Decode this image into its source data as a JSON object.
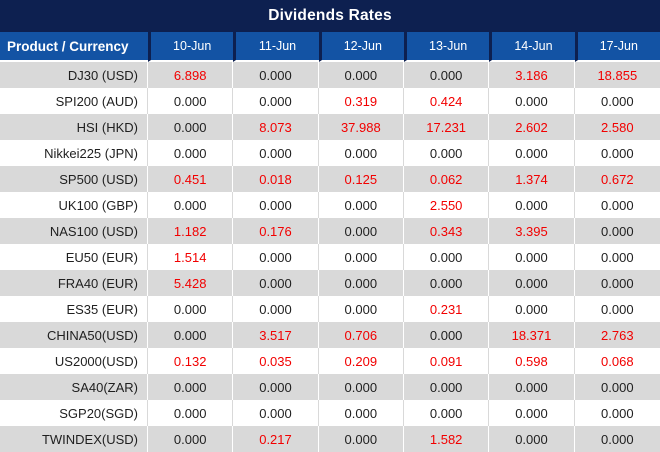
{
  "chart_data": {
    "type": "table",
    "title": "Dividends Rates",
    "columns": [
      "Product / Currency",
      "10-Jun",
      "11-Jun",
      "12-Jun",
      "13-Jun",
      "14-Jun",
      "17-Jun"
    ],
    "rows": [
      {
        "product": "DJ30 (USD)",
        "values": [
          6.898,
          0.0,
          0.0,
          0.0,
          3.186,
          18.855
        ]
      },
      {
        "product": "SPI200 (AUD)",
        "values": [
          0.0,
          0.0,
          0.319,
          0.424,
          0.0,
          0.0
        ]
      },
      {
        "product": "HSI (HKD)",
        "values": [
          0.0,
          8.073,
          37.988,
          17.231,
          2.602,
          2.58
        ]
      },
      {
        "product": "Nikkei225 (JPN)",
        "values": [
          0.0,
          0.0,
          0.0,
          0.0,
          0.0,
          0.0
        ]
      },
      {
        "product": "SP500 (USD)",
        "values": [
          0.451,
          0.018,
          0.125,
          0.062,
          1.374,
          0.672
        ]
      },
      {
        "product": "UK100 (GBP)",
        "values": [
          0.0,
          0.0,
          0.0,
          2.55,
          0.0,
          0.0
        ]
      },
      {
        "product": "NAS100 (USD)",
        "values": [
          1.182,
          0.176,
          0.0,
          0.343,
          3.395,
          0.0
        ]
      },
      {
        "product": "EU50 (EUR)",
        "values": [
          1.514,
          0.0,
          0.0,
          0.0,
          0.0,
          0.0
        ]
      },
      {
        "product": "FRA40 (EUR)",
        "values": [
          5.428,
          0.0,
          0.0,
          0.0,
          0.0,
          0.0
        ]
      },
      {
        "product": "ES35 (EUR)",
        "values": [
          0.0,
          0.0,
          0.0,
          0.231,
          0.0,
          0.0
        ]
      },
      {
        "product": "CHINA50(USD)",
        "values": [
          0.0,
          3.517,
          0.706,
          0.0,
          18.371,
          2.763
        ]
      },
      {
        "product": "US2000(USD)",
        "values": [
          0.132,
          0.035,
          0.209,
          0.091,
          0.598,
          0.068
        ]
      },
      {
        "product": "SA40(ZAR)",
        "values": [
          0.0,
          0.0,
          0.0,
          0.0,
          0.0,
          0.0
        ]
      },
      {
        "product": "SGP20(SGD)",
        "values": [
          0.0,
          0.0,
          0.0,
          0.0,
          0.0,
          0.0
        ]
      },
      {
        "product": "TWINDEX(USD)",
        "values": [
          0.0,
          0.217,
          0.0,
          1.582,
          0.0,
          0.0
        ]
      }
    ],
    "value_format": "3-decimal fixed",
    "highlight_rule": "non-zero values rendered in red",
    "layout": "striped rows, first data row gray, alternating white"
  },
  "colors": {
    "title_bg": "#0d2050",
    "header_bg": "#1353a4",
    "header_text": "#ffffff",
    "row_alt_bg": "#d9d9d9",
    "row_bg": "#ffffff",
    "zero_value": "#1f1f1f",
    "positive_value": "#f20000"
  }
}
